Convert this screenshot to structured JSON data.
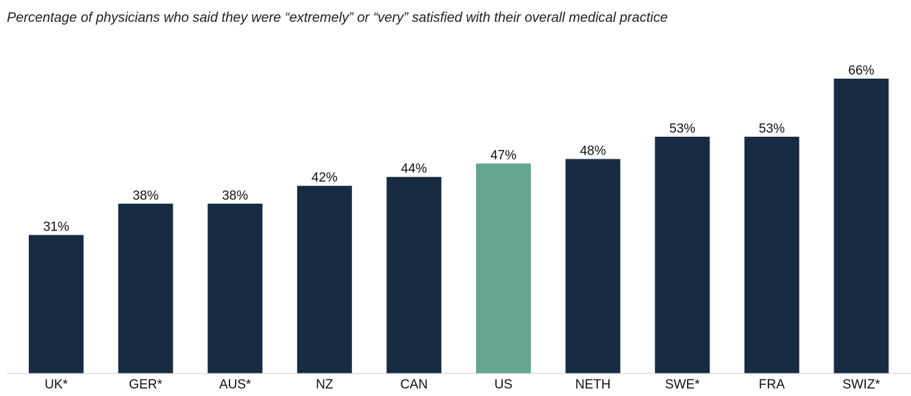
{
  "chart_data": {
    "type": "bar",
    "title": "",
    "subtitle": "Percentage of physicians who said they were “extremely” or “very” satisfied with their overall medical practice",
    "xlabel": "",
    "ylabel": "",
    "ylim": [
      0,
      66
    ],
    "grid": false,
    "legend": "none",
    "categories": [
      "UK*",
      "GER*",
      "AUS*",
      "NZ",
      "CAN",
      "US",
      "NETH",
      "SWE*",
      "FRA",
      "SWIZ*"
    ],
    "values": [
      31,
      38,
      38,
      42,
      44,
      47,
      48,
      53,
      53,
      66
    ],
    "value_labels": [
      "31%",
      "38%",
      "38%",
      "42%",
      "44%",
      "47%",
      "48%",
      "53%",
      "53%",
      "66%"
    ],
    "highlight_category": "US",
    "colors": {
      "bar": "#172b42",
      "highlight": "#65a591",
      "axis": "#c8c8c8"
    }
  }
}
